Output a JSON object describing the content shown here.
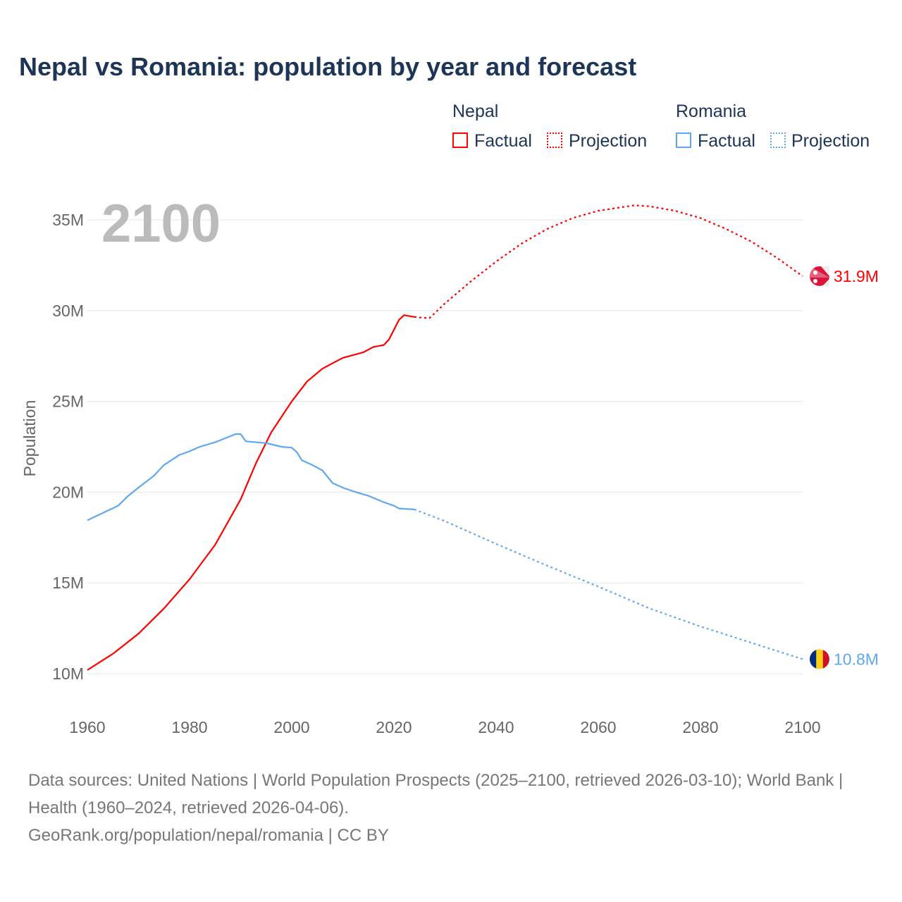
{
  "title": "Nepal vs Romania: population by year and forecast",
  "legend": {
    "nepal": "Nepal",
    "romania": "Romania",
    "factual": "Factual",
    "projection": "Projection"
  },
  "year_label": "2100",
  "source_line1": "Data sources: United Nations | World Population Prospects (2025–2100, retrieved 2026-03-10); World Bank | Health (1960–2024, retrieved 2026-04-06).",
  "source_line2": "GeoRank.org/population/nepal/romania | CC BY",
  "chart_data": {
    "type": "line",
    "title": "Nepal vs Romania: population by year and forecast",
    "xlabel": "",
    "ylabel": "Population",
    "xlim": [
      1960,
      2100
    ],
    "ylim": [
      10,
      35
    ],
    "x_ticks": [
      "1960",
      "1980",
      "2000",
      "2020",
      "2040",
      "2060",
      "2080",
      "2100"
    ],
    "y_ticks": [
      "10M",
      "15M",
      "20M",
      "25M",
      "30M",
      "35M"
    ],
    "series": [
      {
        "name": "Nepal",
        "color": "#ff0000",
        "end_label": "31.9M",
        "factual": [
          [
            1960,
            10.2
          ],
          [
            1965,
            11.1
          ],
          [
            1970,
            12.2
          ],
          [
            1975,
            13.6
          ],
          [
            1980,
            15.2
          ],
          [
            1985,
            17.1
          ],
          [
            1990,
            19.6
          ],
          [
            1993,
            21.6
          ],
          [
            1996,
            23.3
          ],
          [
            2000,
            25.0
          ],
          [
            2003,
            26.1
          ],
          [
            2006,
            26.8
          ],
          [
            2010,
            27.4
          ],
          [
            2014,
            27.7
          ],
          [
            2016,
            28.0
          ],
          [
            2018,
            28.1
          ],
          [
            2019,
            28.4
          ],
          [
            2021,
            29.5
          ],
          [
            2022,
            29.75
          ],
          [
            2024,
            29.65
          ]
        ],
        "projection": [
          [
            2024,
            29.65
          ],
          [
            2026,
            29.6
          ],
          [
            2027,
            29.6
          ],
          [
            2030,
            30.4
          ],
          [
            2035,
            31.6
          ],
          [
            2040,
            32.7
          ],
          [
            2045,
            33.7
          ],
          [
            2050,
            34.5
          ],
          [
            2055,
            35.1
          ],
          [
            2060,
            35.5
          ],
          [
            2067,
            35.8
          ],
          [
            2070,
            35.75
          ],
          [
            2075,
            35.5
          ],
          [
            2080,
            35.1
          ],
          [
            2085,
            34.5
          ],
          [
            2090,
            33.8
          ],
          [
            2095,
            32.9
          ],
          [
            2100,
            31.9
          ]
        ]
      },
      {
        "name": "Romania",
        "color": "#5fa8f0",
        "end_label": "10.8M",
        "factual": [
          [
            1960,
            18.45
          ],
          [
            1963,
            18.85
          ],
          [
            1966,
            19.25
          ],
          [
            1968,
            19.8
          ],
          [
            1970,
            20.25
          ],
          [
            1973,
            20.9
          ],
          [
            1975,
            21.5
          ],
          [
            1978,
            22.05
          ],
          [
            1980,
            22.25
          ],
          [
            1982,
            22.5
          ],
          [
            1985,
            22.75
          ],
          [
            1989,
            23.2
          ],
          [
            1990,
            23.2
          ],
          [
            1991,
            22.8
          ],
          [
            1995,
            22.7
          ],
          [
            1998,
            22.5
          ],
          [
            2000,
            22.45
          ],
          [
            2001,
            22.2
          ],
          [
            2002,
            21.75
          ],
          [
            2004,
            21.5
          ],
          [
            2006,
            21.2
          ],
          [
            2008,
            20.5
          ],
          [
            2010,
            20.25
          ],
          [
            2012,
            20.05
          ],
          [
            2015,
            19.8
          ],
          [
            2018,
            19.45
          ],
          [
            2020,
            19.25
          ],
          [
            2021,
            19.1
          ],
          [
            2024,
            19.05
          ]
        ],
        "projection": [
          [
            2024,
            19.05
          ],
          [
            2030,
            18.4
          ],
          [
            2040,
            17.15
          ],
          [
            2050,
            15.95
          ],
          [
            2060,
            14.8
          ],
          [
            2070,
            13.6
          ],
          [
            2080,
            12.6
          ],
          [
            2090,
            11.7
          ],
          [
            2100,
            10.8
          ]
        ]
      }
    ]
  }
}
